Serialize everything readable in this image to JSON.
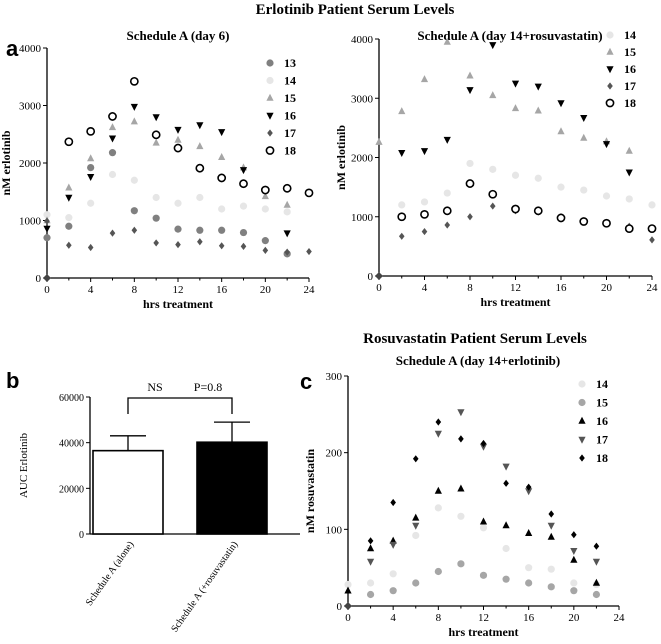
{
  "figure": {
    "title_top": "Erlotinib Patient Serum Levels",
    "title_mid": "Rosuvastatin Patient Serum Levels",
    "panel_labels": {
      "a": "a",
      "b": "b",
      "c": "c"
    }
  },
  "marker_colors": {
    "13": "#808080",
    "14": "#e6e6e6",
    "15": "#a6a6a6",
    "16": "#000000",
    "17": "#555555",
    "18": "#000000"
  },
  "chart_data": [
    {
      "id": "a-left",
      "type": "scatter",
      "title": "Schedule A (day 6)",
      "xlabel": "hrs treatment",
      "ylabel": "nM erlotinib",
      "xlim": [
        0,
        24
      ],
      "ylim": [
        0,
        4000
      ],
      "xticks": [
        0,
        4,
        8,
        12,
        16,
        20,
        24
      ],
      "yticks": [
        0,
        1000,
        2000,
        3000,
        4000
      ],
      "legend_position": "top-right",
      "series": [
        {
          "name": "13",
          "marker": "circle-filled",
          "points": [
            [
              0,
              700
            ],
            [
              2,
              900
            ],
            [
              4,
              1920
            ],
            [
              6,
              2180
            ],
            [
              8,
              1170
            ],
            [
              10,
              1040
            ],
            [
              12,
              850
            ],
            [
              14,
              830
            ],
            [
              16,
              830
            ],
            [
              18,
              790
            ],
            [
              20,
              650
            ],
            [
              22,
              420
            ]
          ]
        },
        {
          "name": "14",
          "marker": "circle-filled",
          "points": [
            [
              0,
              1100
            ],
            [
              2,
              1050
            ],
            [
              4,
              1300
            ],
            [
              6,
              1800
            ],
            [
              8,
              1700
            ],
            [
              10,
              1400
            ],
            [
              12,
              1300
            ],
            [
              14,
              1400
            ],
            [
              16,
              1200
            ],
            [
              18,
              1250
            ],
            [
              20,
              1200
            ],
            [
              22,
              1150
            ]
          ]
        },
        {
          "name": "15",
          "marker": "triangle-up",
          "points": [
            [
              0,
              1000
            ],
            [
              2,
              1570
            ],
            [
              4,
              2080
            ],
            [
              6,
              2620
            ],
            [
              8,
              2720
            ],
            [
              10,
              2350
            ],
            [
              12,
              2400
            ],
            [
              14,
              2290
            ],
            [
              16,
              2100
            ],
            [
              18,
              1920
            ],
            [
              20,
              1420
            ],
            [
              22,
              1270
            ]
          ]
        },
        {
          "name": "16",
          "marker": "triangle-down",
          "points": [
            [
              0,
              860
            ],
            [
              2,
              1400
            ],
            [
              4,
              1760
            ],
            [
              6,
              2430
            ],
            [
              8,
              2980
            ],
            [
              10,
              2800
            ],
            [
              12,
              2580
            ],
            [
              14,
              2660
            ],
            [
              16,
              2540
            ],
            [
              18,
              1880
            ],
            [
              20,
              1520
            ],
            [
              22,
              780
            ]
          ]
        },
        {
          "name": "17",
          "marker": "diamond",
          "points": [
            [
              0,
              990
            ],
            [
              2,
              570
            ],
            [
              4,
              530
            ],
            [
              6,
              780
            ],
            [
              8,
              830
            ],
            [
              10,
              610
            ],
            [
              12,
              580
            ],
            [
              14,
              630
            ],
            [
              16,
              560
            ],
            [
              18,
              550
            ],
            [
              20,
              480
            ],
            [
              22,
              450
            ],
            [
              24,
              460
            ]
          ]
        },
        {
          "name": "18",
          "marker": "circle-open",
          "points": [
            [
              2,
              2370
            ],
            [
              4,
              2550
            ],
            [
              6,
              2810
            ],
            [
              8,
              3420
            ],
            [
              10,
              2490
            ],
            [
              12,
              2260
            ],
            [
              14,
              1910
            ],
            [
              16,
              1740
            ],
            [
              18,
              1640
            ],
            [
              20,
              1530
            ],
            [
              22,
              1560
            ],
            [
              24,
              1480
            ]
          ]
        }
      ]
    },
    {
      "id": "a-right",
      "type": "scatter",
      "title": "Schedule A (day 14+rosuvastatin)",
      "xlabel": "hrs treatment",
      "ylabel": "nM erlotinib",
      "xlim": [
        0,
        24
      ],
      "ylim": [
        0,
        4000
      ],
      "xticks": [
        0,
        4,
        8,
        12,
        16,
        20,
        24
      ],
      "yticks": [
        0,
        1000,
        2000,
        3000,
        4000
      ],
      "legend_position": "top-right",
      "series": [
        {
          "name": "14",
          "marker": "circle-filled",
          "points": [
            [
              2,
              1200
            ],
            [
              4,
              1250
            ],
            [
              6,
              1400
            ],
            [
              8,
              1900
            ],
            [
              10,
              1800
            ],
            [
              12,
              1700
            ],
            [
              14,
              1650
            ],
            [
              16,
              1500
            ],
            [
              18,
              1450
            ],
            [
              20,
              1350
            ],
            [
              22,
              1300
            ],
            [
              24,
              1200
            ]
          ]
        },
        {
          "name": "15",
          "marker": "triangle-up",
          "points": [
            [
              0,
              2260
            ],
            [
              2,
              2780
            ],
            [
              4,
              3320
            ],
            [
              6,
              3950
            ],
            [
              8,
              3380
            ],
            [
              10,
              3050
            ],
            [
              12,
              2830
            ],
            [
              14,
              2790
            ],
            [
              16,
              2440
            ],
            [
              18,
              2330
            ],
            [
              20,
              2270
            ],
            [
              22,
              2110
            ]
          ]
        },
        {
          "name": "16",
          "marker": "triangle-down",
          "points": [
            [
              2,
              2080
            ],
            [
              4,
              2110
            ],
            [
              6,
              2300
            ],
            [
              8,
              3140
            ],
            [
              10,
              3900
            ],
            [
              12,
              3250
            ],
            [
              14,
              3200
            ],
            [
              16,
              2920
            ],
            [
              18,
              2670
            ],
            [
              20,
              2230
            ],
            [
              22,
              1750
            ]
          ]
        },
        {
          "name": "17",
          "marker": "diamond",
          "points": [
            [
              2,
              670
            ],
            [
              4,
              750
            ],
            [
              6,
              860
            ],
            [
              8,
              1000
            ],
            [
              10,
              1180
            ],
            [
              12,
              1100
            ],
            [
              14,
              1080
            ],
            [
              16,
              1000
            ],
            [
              18,
              920
            ],
            [
              20,
              880
            ],
            [
              22,
              840
            ],
            [
              24,
              610
            ]
          ]
        },
        {
          "name": "18",
          "marker": "circle-open",
          "points": [
            [
              2,
              1000
            ],
            [
              4,
              1040
            ],
            [
              6,
              1100
            ],
            [
              8,
              1560
            ],
            [
              10,
              1380
            ],
            [
              12,
              1130
            ],
            [
              14,
              1100
            ],
            [
              16,
              980
            ],
            [
              18,
              920
            ],
            [
              20,
              890
            ],
            [
              22,
              800
            ],
            [
              24,
              800
            ]
          ]
        }
      ]
    },
    {
      "id": "b",
      "type": "bar",
      "ylabel": "AUC Erlotinib",
      "ylim": [
        0,
        60000
      ],
      "yticks": [
        0,
        20000,
        40000,
        60000
      ],
      "categories": [
        "Schedule A (alone)",
        "Schedule A (+rosuvastatin)"
      ],
      "values": [
        36500,
        40200
      ],
      "errors": [
        6500,
        8800
      ],
      "bar_fills": [
        "#ffffff",
        "#000000"
      ],
      "annotations": [
        "NS",
        "P=0.8"
      ]
    },
    {
      "id": "c",
      "type": "scatter",
      "title": "Schedule A (day 14+erlotinib)",
      "xlabel": "hrs treatment",
      "ylabel": "nM rosuvastatin",
      "xlim": [
        0,
        24
      ],
      "ylim": [
        0,
        300
      ],
      "xticks": [
        0,
        4,
        8,
        12,
        16,
        20,
        24
      ],
      "yticks": [
        0,
        100,
        200,
        300
      ],
      "legend_position": "top-right",
      "series": [
        {
          "name": "14",
          "marker": "circle-filled",
          "points": [
            [
              0,
              28
            ],
            [
              2,
              30
            ],
            [
              4,
              42
            ],
            [
              6,
              92
            ],
            [
              8,
              128
            ],
            [
              10,
              117
            ],
            [
              12,
              102
            ],
            [
              14,
              75
            ],
            [
              16,
              50
            ],
            [
              18,
              48
            ],
            [
              20,
              30
            ],
            [
              22,
              28
            ]
          ]
        },
        {
          "name": "15",
          "marker": "circle-filled",
          "points": [
            [
              2,
              15
            ],
            [
              4,
              20
            ],
            [
              6,
              30
            ],
            [
              8,
              45
            ],
            [
              10,
              55
            ],
            [
              12,
              40
            ],
            [
              14,
              35
            ],
            [
              16,
              30
            ],
            [
              18,
              25
            ],
            [
              20,
              20
            ],
            [
              22,
              15
            ]
          ]
        },
        {
          "name": "16",
          "marker": "triangle-up",
          "points": [
            [
              0,
              20
            ],
            [
              2,
              75
            ],
            [
              4,
              85
            ],
            [
              6,
              115
            ],
            [
              8,
              150
            ],
            [
              10,
              153
            ],
            [
              12,
              110
            ],
            [
              14,
              105
            ],
            [
              16,
              95
            ],
            [
              18,
              90
            ],
            [
              20,
              60
            ],
            [
              22,
              30
            ]
          ]
        },
        {
          "name": "17",
          "marker": "triangle-down",
          "points": [
            [
              2,
              58
            ],
            [
              4,
              80
            ],
            [
              6,
              105
            ],
            [
              8,
              225
            ],
            [
              10,
              253
            ],
            [
              12,
              208
            ],
            [
              14,
              182
            ],
            [
              16,
              150
            ],
            [
              18,
              105
            ],
            [
              20,
              72
            ],
            [
              22,
              58
            ]
          ]
        },
        {
          "name": "18",
          "marker": "diamond",
          "points": [
            [
              2,
              85
            ],
            [
              4,
              135
            ],
            [
              6,
              192
            ],
            [
              8,
              240
            ],
            [
              10,
              218
            ],
            [
              12,
              212
            ],
            [
              14,
              160
            ],
            [
              16,
              155
            ],
            [
              18,
              120
            ],
            [
              20,
              93
            ],
            [
              22,
              78
            ]
          ]
        }
      ]
    }
  ]
}
